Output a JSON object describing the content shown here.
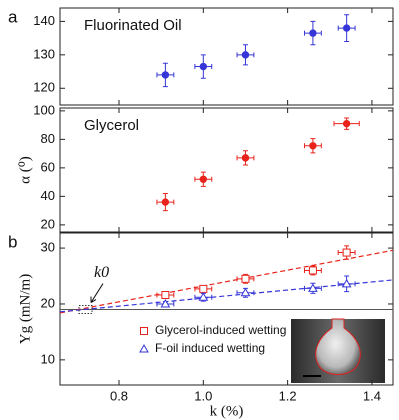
{
  "chart_data": [
    {
      "type": "scatter",
      "panel_label": "a",
      "annotation": "Fluorinated Oil",
      "xlim": [
        0.66,
        1.45
      ],
      "xticks": [
        0.8,
        1,
        1.2,
        1.4
      ],
      "ylim": [
        115,
        144
      ],
      "yticks": [
        120,
        130,
        140
      ],
      "series": [
        {
          "color": "#3535d8",
          "marker": "circle",
          "x": [
            0.91,
            1.0,
            1.1,
            1.26,
            1.34
          ],
          "values": [
            124,
            126.5,
            130,
            136.5,
            138
          ],
          "xerr": [
            0.02,
            0.02,
            0.02,
            0.02,
            0.02
          ],
          "yerr": [
            3.5,
            3.5,
            3,
            3.5,
            4
          ]
        }
      ]
    },
    {
      "type": "scatter",
      "annotation": "Glycerol",
      "ylabel": "α (⁰)",
      "xlim": [
        0.66,
        1.45
      ],
      "xticks": [
        0.8,
        1,
        1.2,
        1.4
      ],
      "ylim": [
        15,
        102
      ],
      "yticks": [
        20,
        40,
        60,
        80,
        100
      ],
      "series": [
        {
          "color": "#e8231b",
          "marker": "circle",
          "x": [
            0.91,
            1.0,
            1.1,
            1.26,
            1.34
          ],
          "values": [
            36,
            52,
            67,
            75.5,
            91
          ],
          "xerr": [
            0.02,
            0.02,
            0.02,
            0.02,
            0.03
          ],
          "yerr": [
            6,
            5,
            5,
            5,
            4
          ]
        }
      ]
    },
    {
      "type": "scatter",
      "panel_label": "b",
      "annotation": "k0",
      "xlabel": "k (%)",
      "ylabel": "Υg (mN/m)",
      "xlim": [
        0.66,
        1.45
      ],
      "xticks": [
        0.8,
        {
          "value": 1,
          "label": "1.0"
        },
        1.2,
        1.4
      ],
      "ylim": [
        5.5,
        32.7
      ],
      "yticks": [
        10,
        20,
        30
      ],
      "hline": 19,
      "series": [
        {
          "name": "Glycerol-induced wetting",
          "color": "#e8231b",
          "marker": "square",
          "x": [
            0.91,
            1.0,
            1.1,
            1.26,
            1.34
          ],
          "values": [
            21.6,
            22.7,
            24.5,
            26,
            29.2
          ],
          "xerr": [
            0.02,
            0.02,
            0.02,
            0.02,
            0.02
          ],
          "yerr": [
            0.4,
            0.4,
            0.8,
            0.8,
            1.2
          ]
        },
        {
          "name": "F-oil induced wetting",
          "color": "#3535d8",
          "marker": "triangle",
          "x": [
            0.91,
            1.0,
            1.1,
            1.26,
            1.34
          ],
          "values": [
            20,
            21.2,
            22,
            22.8,
            23.6
          ],
          "xerr": [
            0.02,
            0.02,
            0.02,
            0.02,
            0.02
          ],
          "yerr": [
            0.4,
            0.7,
            0.8,
            0.9,
            1.4
          ]
        }
      ],
      "fits": [
        {
          "color": "#e8231b",
          "x": [
            0.66,
            1.45
          ],
          "values": [
            18.4,
            29.6
          ]
        },
        {
          "color": "#3535d8",
          "x": [
            0.66,
            1.45
          ],
          "values": [
            18.6,
            24.3
          ]
        }
      ]
    }
  ]
}
